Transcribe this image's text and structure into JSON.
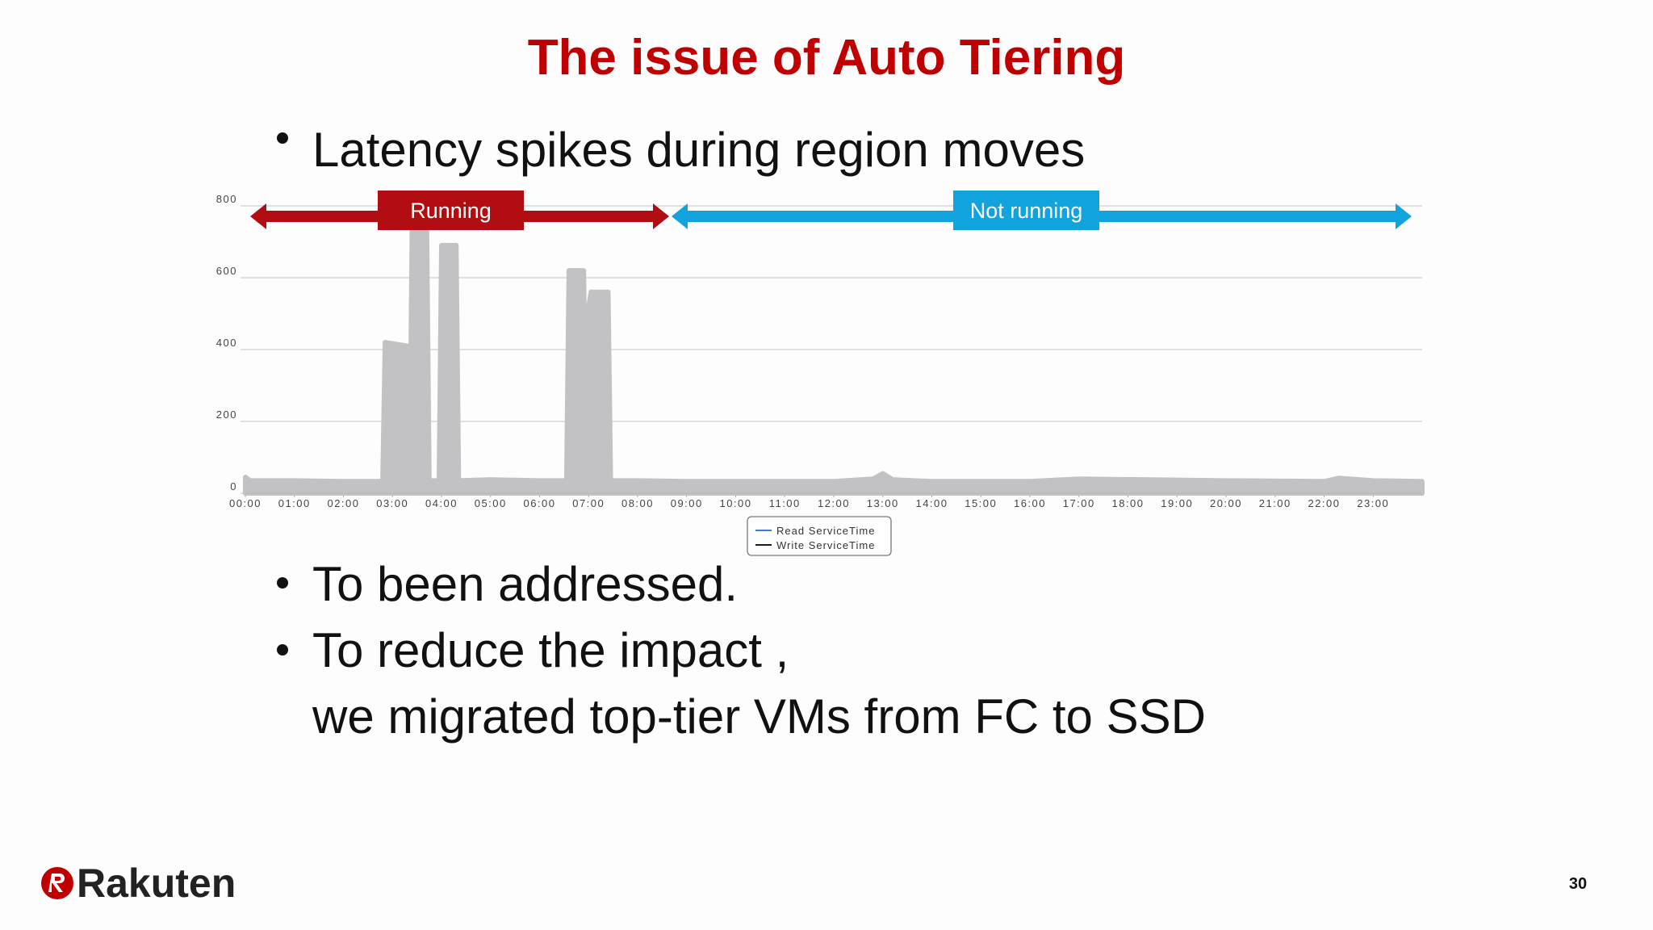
{
  "title": "The issue of Auto Tiering",
  "bullets": [
    [
      "Latency spikes during region moves"
    ],
    [
      "To been addressed."
    ],
    [
      "To reduce the impact ,",
      "we migrated top-tier VMs from FC to SSD"
    ]
  ],
  "footer": {
    "logo": "Rakuten",
    "page_number": "30"
  },
  "chart_data": {
    "type": "area",
    "x": [
      0,
      0.1,
      1,
      2,
      2.8,
      2.85,
      3.3,
      3.35,
      3.4,
      3.7,
      3.75,
      3.95,
      4.0,
      4.3,
      4.35,
      5,
      6,
      6.55,
      6.6,
      6.9,
      6.95,
      7.0,
      7.05,
      7.4,
      7.45,
      8,
      9,
      12,
      12.8,
      13,
      13.2,
      14,
      16,
      17,
      20,
      22,
      22.3,
      23,
      24
    ],
    "series": [
      {
        "name": "Read ServiceTime",
        "color": "#3a7bd5",
        "values": [
          45,
          35,
          35,
          33,
          33,
          420,
          410,
          35,
          730,
          730,
          35,
          35,
          690,
          690,
          35,
          38,
          35,
          35,
          620,
          620,
          35,
          520,
          560,
          560,
          35,
          35,
          33,
          33,
          40,
          55,
          38,
          33,
          33,
          40,
          35,
          33,
          42,
          35,
          33
        ]
      },
      {
        "name": "Write ServiceTime",
        "color": "#1a1a1a",
        "values": [
          25,
          22,
          22,
          22,
          22,
          22,
          22,
          22,
          22,
          22,
          22,
          22,
          22,
          22,
          22,
          24,
          22,
          22,
          22,
          22,
          22,
          22,
          22,
          22,
          22,
          22,
          22,
          22,
          24,
          28,
          24,
          22,
          22,
          24,
          22,
          22,
          24,
          22,
          22
        ]
      }
    ],
    "fill": "#c2c1c3",
    "xlim": [
      0,
      24
    ],
    "xticks": [
      {
        "value": 0,
        "label": "00:00"
      },
      {
        "value": 1,
        "label": "01:00"
      },
      {
        "value": 2,
        "label": "02:00"
      },
      {
        "value": 3,
        "label": "03:00"
      },
      {
        "value": 4,
        "label": "04:00"
      },
      {
        "value": 5,
        "label": "05:00"
      },
      {
        "value": 6,
        "label": "06:00"
      },
      {
        "value": 7,
        "label": "07:00"
      },
      {
        "value": 8,
        "label": "08:00"
      },
      {
        "value": 9,
        "label": "09:00"
      },
      {
        "value": 10,
        "label": "10:00"
      },
      {
        "value": 11,
        "label": "11:00"
      },
      {
        "value": 12,
        "label": "12:00"
      },
      {
        "value": 13,
        "label": "13:00"
      },
      {
        "value": 14,
        "label": "14:00"
      },
      {
        "value": 15,
        "label": "15:00"
      },
      {
        "value": 16,
        "label": "16:00"
      },
      {
        "value": 17,
        "label": "17:00"
      },
      {
        "value": 18,
        "label": "18:00"
      },
      {
        "value": 19,
        "label": "19:00"
      },
      {
        "value": 20,
        "label": "20:00"
      },
      {
        "value": 21,
        "label": "21:00"
      },
      {
        "value": 22,
        "label": "22:00"
      },
      {
        "value": 23,
        "label": "23:00"
      }
    ],
    "ylim": [
      0,
      800
    ],
    "yticks": [
      0,
      200,
      400,
      600,
      800
    ],
    "grid": true,
    "annotations": [
      "Running",
      "Not running"
    ]
  }
}
